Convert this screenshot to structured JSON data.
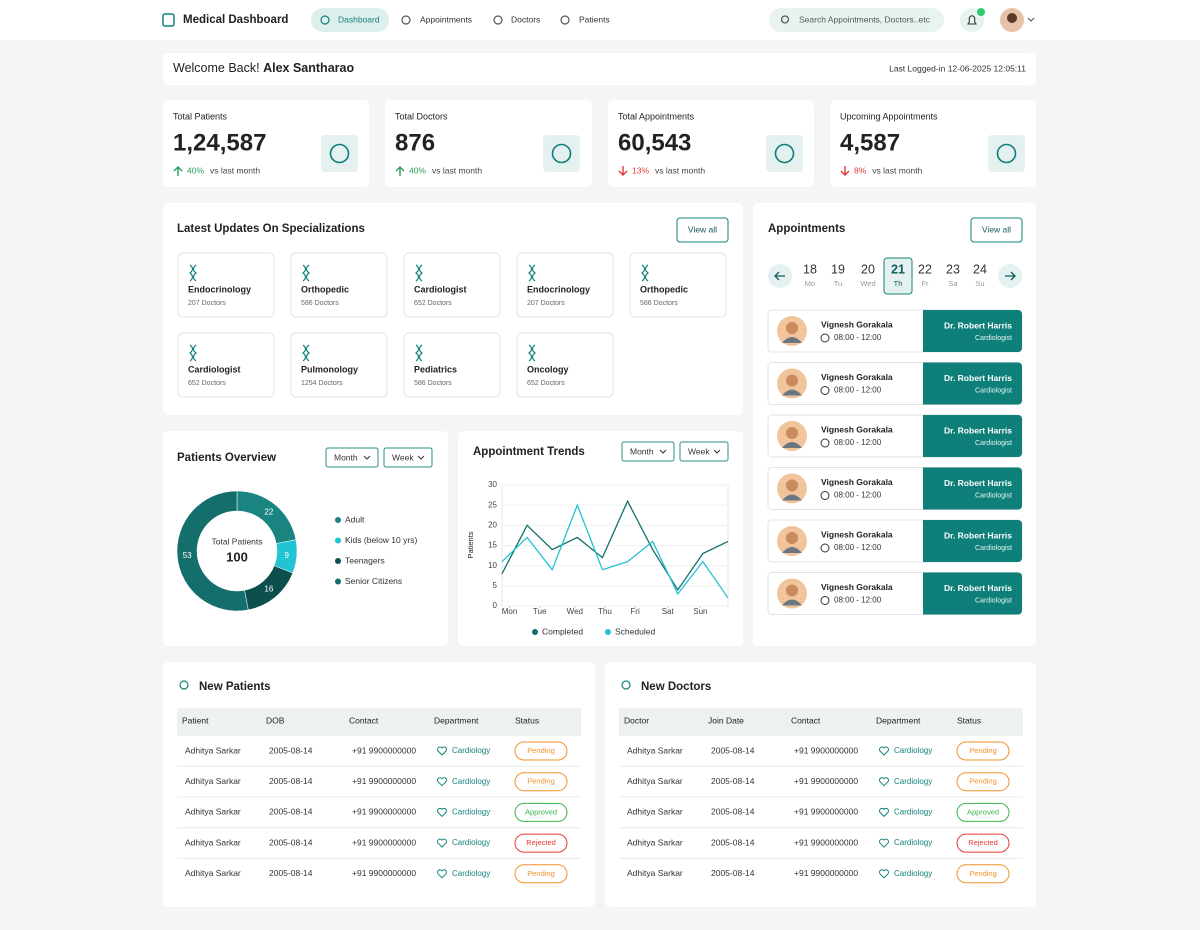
{
  "nav": {
    "brand": "Medical Dashboard",
    "items": [
      "Dashboard",
      "Appointments",
      "Doctors",
      "Patients"
    ],
    "active": 0,
    "search": "Search Appointments, Doctors..etc"
  },
  "welcome": {
    "greeting": "Welcome Back!",
    "name": "Alex Santharao",
    "last_login": "Last Logged-in 12-06-2025 12:05:11"
  },
  "stats": [
    {
      "label": "Total Patients",
      "value": "1,24,587",
      "change": "40%",
      "trend": "up",
      "note": "vs last month"
    },
    {
      "label": "Total Doctors",
      "value": "876",
      "change": "40%",
      "trend": "up",
      "note": "vs last month"
    },
    {
      "label": "Total Appointments",
      "value": "60,543",
      "change": "13%",
      "trend": "down",
      "note": "vs last month"
    },
    {
      "label": "Upcoming Appointments",
      "value": "4,587",
      "change": "8%",
      "trend": "down",
      "note": "vs last month"
    }
  ],
  "specializations": {
    "title": "Latest Updates On Specializations",
    "button": "View all",
    "items": [
      {
        "name": "Endocrinology",
        "doctors": "207 Doctors"
      },
      {
        "name": "Orthopedic",
        "doctors": "586 Doctors"
      },
      {
        "name": "Cardiologist",
        "doctors": "652 Doctors"
      },
      {
        "name": "Endocrinology",
        "doctors": "207 Doctors"
      },
      {
        "name": "Orthopedic",
        "doctors": "586 Doctors"
      },
      {
        "name": "Cardiologist",
        "doctors": "652 Doctors"
      },
      {
        "name": "Pulmonology",
        "doctors": "1254 Doctors"
      },
      {
        "name": "Pediatrics",
        "doctors": "586 Doctors"
      },
      {
        "name": "Oncology",
        "doctors": "652 Doctors"
      }
    ]
  },
  "appointments": {
    "title": "Appointments",
    "button": "View all",
    "selected": 3,
    "days": [
      {
        "date": "18",
        "day": "Mo"
      },
      {
        "date": "19",
        "day": "Tu"
      },
      {
        "date": "20",
        "day": "Wed"
      },
      {
        "date": "21",
        "day": "Th"
      },
      {
        "date": "22",
        "day": "Fr"
      },
      {
        "date": "23",
        "day": "Sa"
      },
      {
        "date": "24",
        "day": "Su"
      }
    ],
    "list": [
      {
        "patient": "Vignesh Gorakala",
        "time": "08:00 - 12:00",
        "doctor": "Dr. Robert Harris",
        "specialty": "Cardiologist"
      },
      {
        "patient": "Vignesh Gorakala",
        "time": "08:00 - 12:00",
        "doctor": "Dr. Robert Harris",
        "specialty": "Cardiologist"
      },
      {
        "patient": "Vignesh Gorakala",
        "time": "08:00 - 12:00",
        "doctor": "Dr. Robert Harris",
        "specialty": "Cardiologist"
      },
      {
        "patient": "Vignesh Gorakala",
        "time": "08:00 - 12:00",
        "doctor": "Dr. Robert Harris",
        "specialty": "Cardiologist"
      },
      {
        "patient": "Vignesh Gorakala",
        "time": "08:00 - 12:00",
        "doctor": "Dr. Robert Harris",
        "specialty": "Cardiologist"
      },
      {
        "patient": "Vignesh Gorakala",
        "time": "08:00 - 12:00",
        "doctor": "Dr. Robert Harris",
        "specialty": "Cardiologist"
      }
    ]
  },
  "chart_data": [
    {
      "type": "pie",
      "title": "Patients Overview",
      "controls": [
        "Month",
        "Week"
      ],
      "center_label": "Total Patients",
      "center_value": 100,
      "categories": [
        "Adult",
        "Kids (below 10 yrs)",
        "Teenagers",
        "Senior Citizens"
      ],
      "values": [
        22,
        9,
        16,
        53
      ],
      "colors": [
        "#1a8580",
        "#22c3d3",
        "#0d4f4c",
        "#146e6b"
      ]
    },
    {
      "type": "line",
      "title": "Appointment Trends",
      "controls": [
        "Month",
        "Week"
      ],
      "y_label": "Patients",
      "x": [
        0,
        1,
        2,
        3,
        4,
        5,
        6,
        7,
        8,
        9
      ],
      "xlim": [
        0,
        9
      ],
      "xticks": [
        {
          "value": 0.3,
          "label": "Mon"
        },
        {
          "value": 1.5,
          "label": "Tue"
        },
        {
          "value": 2.9,
          "label": "Wed"
        },
        {
          "value": 4.1,
          "label": "Thu"
        },
        {
          "value": 5.3,
          "label": "Fri"
        },
        {
          "value": 6.6,
          "label": "Sat"
        },
        {
          "value": 7.9,
          "label": "Sun"
        }
      ],
      "ylim": [
        0,
        30
      ],
      "yticks": [
        0,
        5,
        10,
        15,
        20,
        25,
        30
      ],
      "grid": true,
      "series": [
        {
          "name": "Completed",
          "color": "#136f6b",
          "values": [
            8,
            20,
            14,
            17,
            12,
            26,
            14,
            4,
            13,
            16
          ]
        },
        {
          "name": "Scheduled",
          "color": "#22c3d3",
          "values": [
            11,
            17,
            9,
            25,
            9,
            11,
            16,
            3,
            11,
            2
          ]
        }
      ]
    }
  ],
  "new_patients": {
    "title": "New Patients",
    "columns": [
      "Patient",
      "DOB",
      "Contact",
      "Department",
      "Status"
    ],
    "rows": [
      [
        "Adhitya Sarkar",
        "2005-08-14",
        "+91 9900000000",
        "Cardiology",
        "Pending"
      ],
      [
        "Adhitya Sarkar",
        "2005-08-14",
        "+91 9900000000",
        "Cardiology",
        "Pending"
      ],
      [
        "Adhitya Sarkar",
        "2005-08-14",
        "+91 9900000000",
        "Cardiology",
        "Approved"
      ],
      [
        "Adhitya Sarkar",
        "2005-08-14",
        "+91 9900000000",
        "Cardiology",
        "Rejected"
      ],
      [
        "Adhitya Sarkar",
        "2005-08-14",
        "+91 9900000000",
        "Cardiology",
        "Pending"
      ]
    ],
    "status_colors": [
      "#f2912a",
      "#f2912a",
      "#3cb54a",
      "#e53935",
      "#f2912a"
    ]
  },
  "new_doctors": {
    "title": "New Doctors",
    "columns": [
      "Doctor",
      "Join Date",
      "Contact",
      "Department",
      "Status"
    ],
    "rows": [
      [
        "Adhitya Sarkar",
        "2005-08-14",
        "+91 9900000000",
        "Cardiology",
        "Pending"
      ],
      [
        "Adhitya Sarkar",
        "2005-08-14",
        "+91 9900000000",
        "Cardiology",
        "Pending"
      ],
      [
        "Adhitya Sarkar",
        "2005-08-14",
        "+91 9900000000",
        "Cardiology",
        "Approved"
      ],
      [
        "Adhitya Sarkar",
        "2005-08-14",
        "+91 9900000000",
        "Cardiology",
        "Rejected"
      ],
      [
        "Adhitya Sarkar",
        "2005-08-14",
        "+91 9900000000",
        "Cardiology",
        "Pending"
      ]
    ],
    "status_colors": [
      "#f2912a",
      "#f2912a",
      "#3cb54a",
      "#e53935",
      "#f2912a"
    ]
  }
}
